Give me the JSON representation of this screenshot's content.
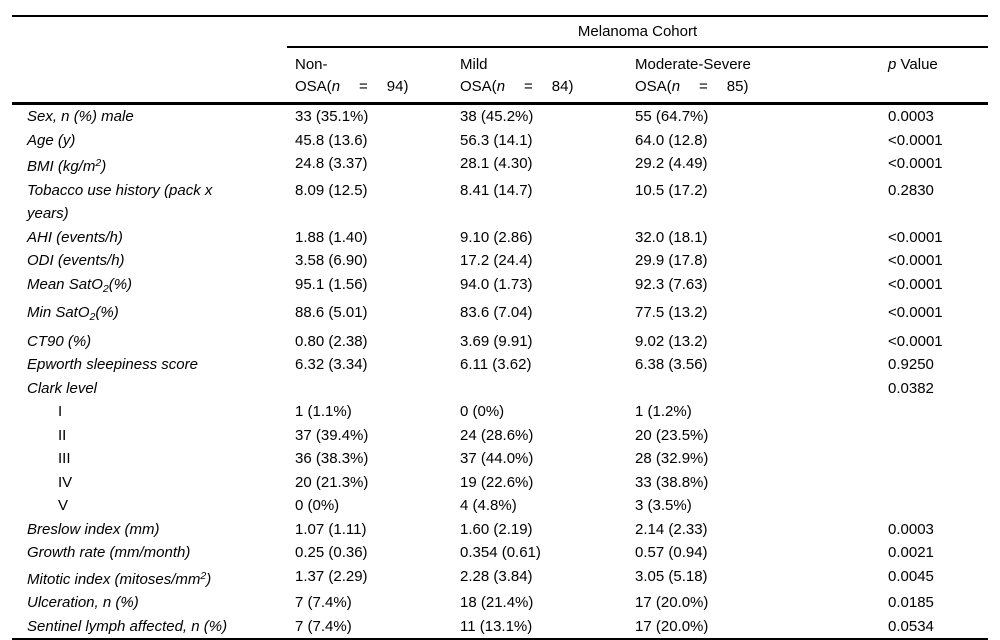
{
  "table": {
    "spanner": "Melanoma Cohort",
    "columns": [
      {
        "line1": "Non-",
        "osa_prefix": "OSA(",
        "n_var": "n",
        "eq": "=",
        "count": "94)"
      },
      {
        "line1": "Mild",
        "osa_prefix": "OSA(",
        "n_var": "n",
        "eq": "=",
        "count": "84)"
      },
      {
        "line1": "Moderate-Severe",
        "osa_prefix": "OSA(",
        "n_var": "n",
        "eq": "=",
        "count": "85)"
      }
    ],
    "p_header": {
      "p": "p",
      "rest": " Value"
    },
    "rows": [
      {
        "label": [
          {
            "t": "Sex, n (%) male"
          }
        ],
        "values": [
          "33 (35.1%)",
          "38 (45.2%)",
          "55 (64.7%)"
        ],
        "p": "0.0003"
      },
      {
        "label": [
          {
            "t": "Age (y)"
          }
        ],
        "values": [
          "45.8 (13.6)",
          "56.3 (14.1)",
          "64.0 (12.8)"
        ],
        "p": "<0.0001"
      },
      {
        "label": [
          {
            "t": "BMI (kg/m"
          },
          {
            "t": "2",
            "v": "sup"
          },
          {
            "t": ")"
          }
        ],
        "values": [
          "24.8 (3.37)",
          "28.1 (4.30)",
          "29.2 (4.49)"
        ],
        "p": "<0.0001"
      },
      {
        "label": [
          {
            "t": "Tobacco use history (pack x years)"
          }
        ],
        "values": [
          "8.09 (12.5)",
          "8.41 (14.7)",
          "10.5 (17.2)"
        ],
        "p": "0.2830"
      },
      {
        "label": [
          {
            "t": "AHI (events/h)"
          }
        ],
        "values": [
          "1.88 (1.40)",
          "9.10 (2.86)",
          "32.0 (18.1)"
        ],
        "p": "<0.0001"
      },
      {
        "label": [
          {
            "t": "ODI (events/h)"
          }
        ],
        "values": [
          "3.58 (6.90)",
          "17.2 (24.4)",
          "29.9 (17.8)"
        ],
        "p": "<0.0001"
      },
      {
        "label": [
          {
            "t": "Mean SatO"
          },
          {
            "t": "2",
            "v": "sub"
          },
          {
            "t": "(%)"
          }
        ],
        "values": [
          "95.1 (1.56)",
          "94.0 (1.73)",
          "92.3 (7.63)"
        ],
        "p": "<0.0001"
      },
      {
        "label": [
          {
            "t": "Min SatO"
          },
          {
            "t": "2",
            "v": "sub"
          },
          {
            "t": "(%)"
          }
        ],
        "values": [
          "88.6 (5.01)",
          "83.6 (7.04)",
          "77.5 (13.2)"
        ],
        "p": "<0.0001"
      },
      {
        "label": [
          {
            "t": "CT90 (%)"
          }
        ],
        "values": [
          "0.80 (2.38)",
          "3.69 (9.91)",
          "9.02 (13.2)"
        ],
        "p": "<0.0001"
      },
      {
        "label": [
          {
            "t": "Epworth sleepiness score"
          }
        ],
        "values": [
          "6.32 (3.34)",
          "6.11 (3.62)",
          "6.38 (3.56)"
        ],
        "p": "0.9250"
      },
      {
        "label": [
          {
            "t": "Clark level"
          }
        ],
        "values": [
          "",
          "",
          ""
        ],
        "p": "0.0382"
      },
      {
        "label": [
          {
            "t": "I"
          }
        ],
        "indent": true,
        "upright": true,
        "values": [
          "1 (1.1%)",
          "0 (0%)",
          "1 (1.2%)"
        ],
        "p": ""
      },
      {
        "label": [
          {
            "t": "II"
          }
        ],
        "indent": true,
        "upright": true,
        "values": [
          "37 (39.4%)",
          "24 (28.6%)",
          "20 (23.5%)"
        ],
        "p": ""
      },
      {
        "label": [
          {
            "t": "III"
          }
        ],
        "indent": true,
        "upright": true,
        "values": [
          "36 (38.3%)",
          "37 (44.0%)",
          "28 (32.9%)"
        ],
        "p": ""
      },
      {
        "label": [
          {
            "t": "IV"
          }
        ],
        "indent": true,
        "upright": true,
        "values": [
          "20 (21.3%)",
          "19 (22.6%)",
          "33 (38.8%)"
        ],
        "p": ""
      },
      {
        "label": [
          {
            "t": "V"
          }
        ],
        "indent": true,
        "upright": true,
        "values": [
          "0 (0%)",
          "4 (4.8%)",
          "3 (3.5%)"
        ],
        "p": ""
      },
      {
        "label": [
          {
            "t": "Breslow index (mm)"
          }
        ],
        "values": [
          "1.07 (1.11)",
          "1.60 (2.19)",
          "2.14 (2.33)"
        ],
        "p": "0.0003"
      },
      {
        "label": [
          {
            "t": "Growth rate (mm/month)"
          }
        ],
        "values": [
          "0.25 (0.36)",
          "0.354 (0.61)",
          "0.57 (0.94)"
        ],
        "p": "0.0021"
      },
      {
        "label": [
          {
            "t": "Mitotic index (mitoses/mm"
          },
          {
            "t": "2",
            "v": "sup"
          },
          {
            "t": ")"
          }
        ],
        "values": [
          "1.37 (2.29)",
          "2.28 (3.84)",
          "3.05 (5.18)"
        ],
        "p": "0.0045"
      },
      {
        "label": [
          {
            "t": "Ulceration, n (%)"
          }
        ],
        "values": [
          "7 (7.4%)",
          "18 (21.4%)",
          "17 (20.0%)"
        ],
        "p": "0.0185"
      },
      {
        "label": [
          {
            "t": "Sentinel lymph affected, n (%)"
          }
        ],
        "values": [
          "7 (7.4%)",
          "11 (13.1%)",
          "17 (20.0%)"
        ],
        "p": "0.0534"
      }
    ]
  }
}
